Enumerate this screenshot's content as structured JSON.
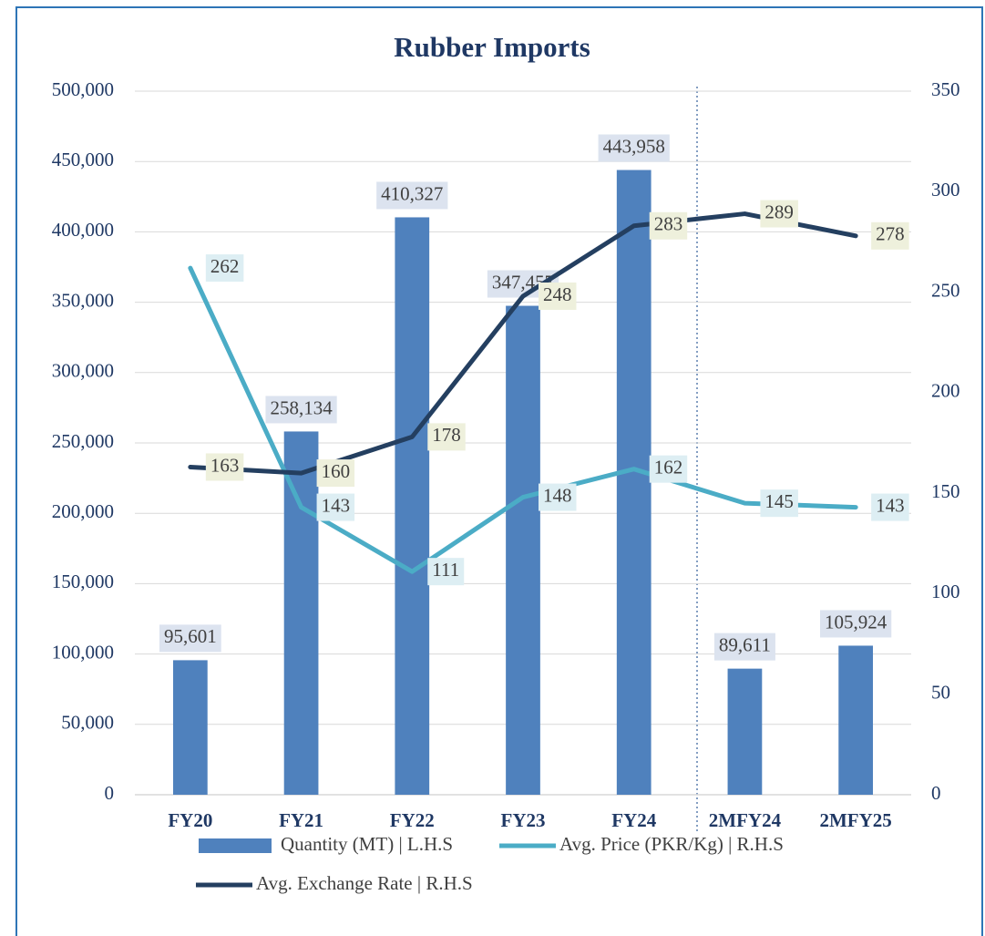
{
  "chart_data": {
    "type": "bar+line",
    "title": "Rubber Imports",
    "categories": [
      "FY20",
      "FY21",
      "FY22",
      "FY23",
      "FY24",
      "2MFY24",
      "2MFY25"
    ],
    "ylim": [
      0,
      500000
    ],
    "yticks": [
      0,
      {
        "value": 50000,
        "label": "50,000"
      },
      {
        "value": 100000,
        "label": "100,000"
      },
      {
        "value": 150000,
        "label": "150,000"
      },
      {
        "value": 200000,
        "label": "200,000"
      },
      {
        "value": 250000,
        "label": "250,000"
      },
      {
        "value": 300000,
        "label": "300,000"
      },
      {
        "value": 350000,
        "label": "350,000"
      },
      {
        "value": 400000,
        "label": "400,000"
      },
      {
        "value": 450000,
        "label": "450,000"
      },
      {
        "value": 500000,
        "label": "500,000"
      }
    ],
    "y2lim": [
      0,
      350
    ],
    "y2ticks": [
      0,
      50,
      100,
      150,
      200,
      250,
      300,
      350
    ],
    "grid": true,
    "legend": "bottom",
    "series": [
      {
        "name": "Quantity (MT) | L.H.S",
        "type": "bar",
        "color": "#4f81bd",
        "values": [
          95601,
          258134,
          410327,
          347457,
          443958,
          89611,
          105924
        ],
        "value_labels": [
          "95,601",
          "258,134",
          "410,327",
          "347,457",
          "443,958",
          "89,611",
          "105,924"
        ]
      },
      {
        "name": "Avg. Price (PKR/Kg) | R.H.S",
        "type": "line",
        "axis": "y2",
        "color": "#4bacc6",
        "values": [
          262,
          143,
          111,
          148,
          162,
          145,
          143
        ]
      },
      {
        "name": "Avg. Exchange Rate | R.H.S",
        "type": "line",
        "axis": "y2",
        "color": "#243f60",
        "values": [
          163,
          160,
          178,
          248,
          283,
          289,
          278
        ]
      }
    ]
  }
}
